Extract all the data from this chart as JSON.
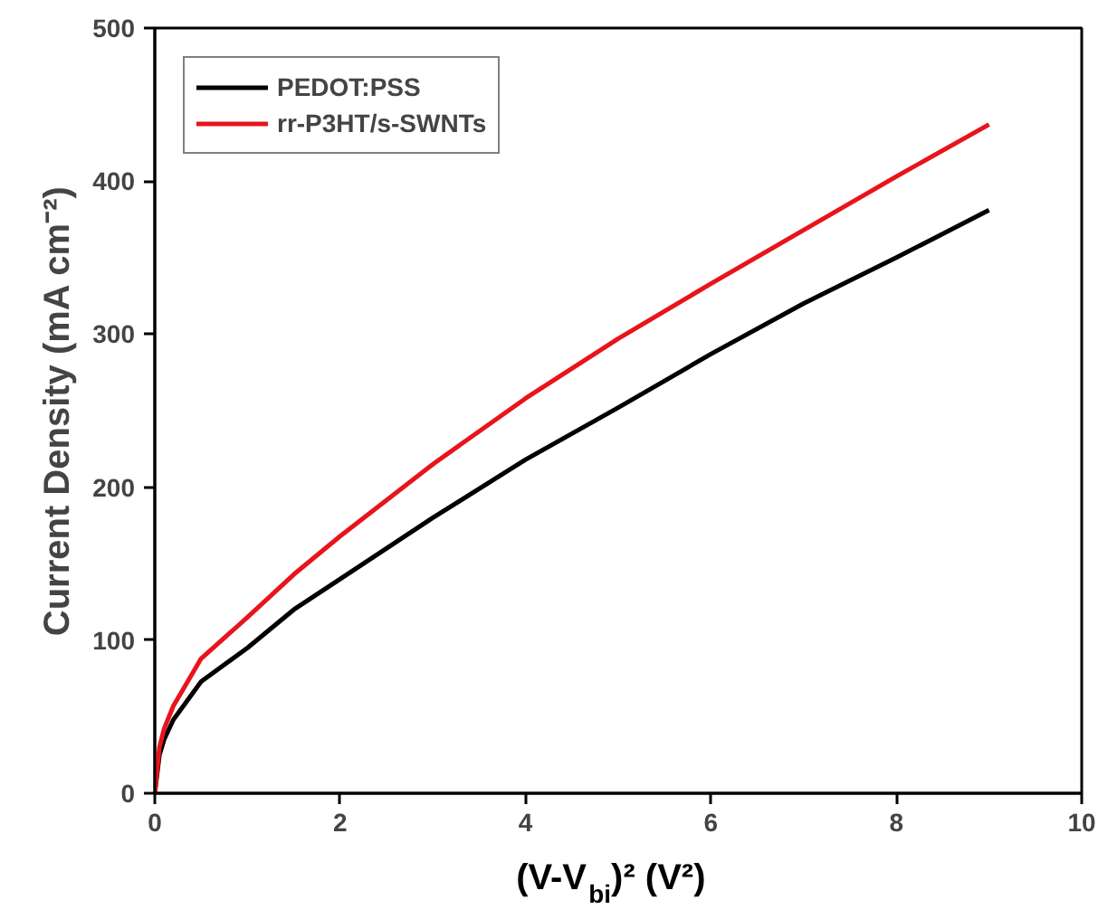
{
  "chart_data": {
    "type": "line",
    "xlabel": "(V-V$_{bi}$)²  (V²)",
    "ylabel": "Current Density (mA cm⁻²)",
    "xlim": [
      0,
      10
    ],
    "ylim": [
      0,
      500
    ],
    "xticks": [
      0,
      2,
      4,
      6,
      8,
      10
    ],
    "yticks": [
      0,
      100,
      200,
      300,
      400,
      500
    ],
    "grid": false,
    "legend": "top left",
    "line_style": "solid",
    "series": [
      {
        "name": "PEDOT:PSS",
        "color": "#000000",
        "x": [
          0,
          0.05,
          0.1,
          0.2,
          0.5,
          1,
          1.5,
          2,
          3,
          4,
          5,
          6,
          7,
          8,
          9
        ],
        "values": [
          0,
          25,
          35,
          48,
          73,
          95,
          120,
          140,
          180,
          218,
          252,
          287,
          320,
          350,
          381
        ]
      },
      {
        "name": "rr-P3HT/s-SWNTs",
        "color": "#e8141c",
        "x": [
          0,
          0.05,
          0.1,
          0.2,
          0.5,
          1,
          1.5,
          2,
          3,
          4,
          5,
          6,
          7,
          8,
          9
        ],
        "values": [
          0,
          30,
          42,
          57,
          88,
          115,
          143,
          168,
          215,
          258,
          297,
          333,
          368,
          403,
          437
        ]
      }
    ]
  }
}
